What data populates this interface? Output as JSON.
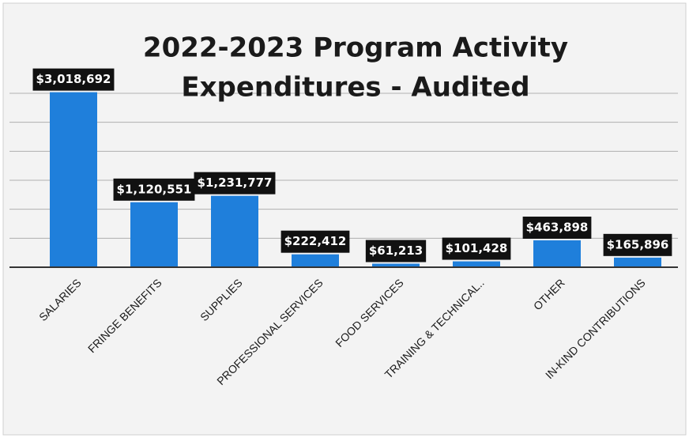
{
  "chart_data": {
    "type": "bar",
    "title_lines": [
      "2022-2023 Program Activity",
      "Expenditures - Audited"
    ],
    "categories": [
      "SALARIES",
      "FRINGE BENEFITS",
      "SUPPLIES",
      "PROFESSIONAL SERVICES",
      "FOOD SERVICES",
      "TRAINING & TECHNICAL..",
      "OTHER",
      "IN-KIND CONTRIBUTIONS"
    ],
    "values": [
      3018692,
      1120551,
      1231777,
      222412,
      61213,
      101428,
      463898,
      165896
    ],
    "value_labels": [
      "$3,018,692",
      "$1,120,551",
      "$1,231,777",
      "$222,412",
      "$61,213",
      "$101,428",
      "$463,898",
      "$165,896"
    ],
    "color": "#1f7fdb",
    "ylim": [
      0,
      3000000
    ],
    "yticks": [
      0,
      500000,
      1000000,
      1500000,
      2000000,
      2500000,
      3000000
    ],
    "grid": true
  }
}
